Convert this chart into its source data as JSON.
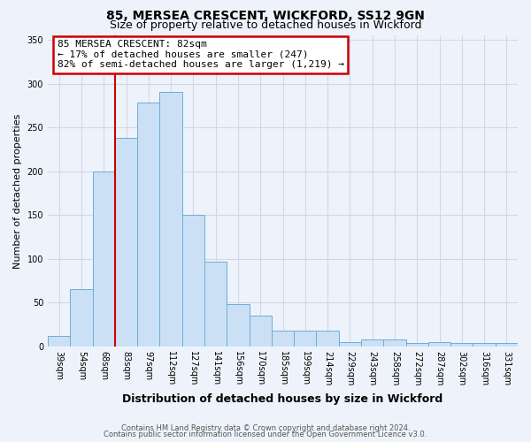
{
  "title": "85, MERSEA CRESCENT, WICKFORD, SS12 9GN",
  "subtitle": "Size of property relative to detached houses in Wickford",
  "xlabel": "Distribution of detached houses by size in Wickford",
  "ylabel": "Number of detached properties",
  "bar_labels": [
    "39sqm",
    "54sqm",
    "68sqm",
    "83sqm",
    "97sqm",
    "112sqm",
    "127sqm",
    "141sqm",
    "156sqm",
    "170sqm",
    "185sqm",
    "199sqm",
    "214sqm",
    "229sqm",
    "243sqm",
    "258sqm",
    "272sqm",
    "287sqm",
    "302sqm",
    "316sqm",
    "331sqm"
  ],
  "bar_values": [
    12,
    65,
    200,
    238,
    278,
    290,
    150,
    97,
    48,
    35,
    18,
    18,
    18,
    5,
    8,
    8,
    4,
    5,
    4,
    4,
    4
  ],
  "bar_color": "#cce0f5",
  "bar_edge_color": "#6aaed6",
  "vline_x_idx": 3,
  "vline_color": "#cc0000",
  "annotation_line1": "85 MERSEA CRESCENT: 82sqm",
  "annotation_line2": "← 17% of detached houses are smaller (247)",
  "annotation_line3": "82% of semi-detached houses are larger (1,219) →",
  "annotation_box_edge_color": "#cc0000",
  "ylim": [
    0,
    355
  ],
  "yticks": [
    0,
    50,
    100,
    150,
    200,
    250,
    300,
    350
  ],
  "footer1": "Contains HM Land Registry data © Crown copyright and database right 2024.",
  "footer2": "Contains public sector information licensed under the Open Government Licence v3.0.",
  "bg_color": "#eef3fb",
  "grid_color": "#d0d8e8",
  "title_fontsize": 10,
  "subtitle_fontsize": 9,
  "xlabel_fontsize": 9,
  "ylabel_fontsize": 8,
  "tick_fontsize": 7,
  "footer_fontsize": 6
}
